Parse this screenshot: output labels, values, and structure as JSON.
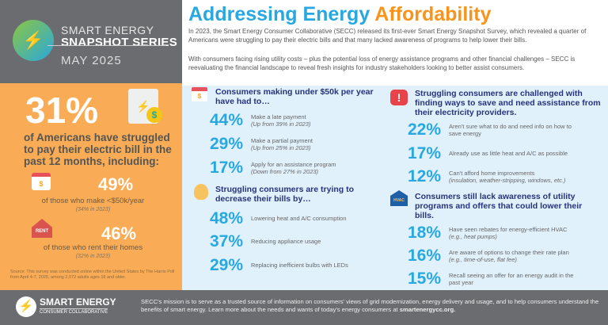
{
  "header": {
    "series_line1": "SMART ENERGY",
    "series_line2": "SNAPSHOT SERIES",
    "month": "MAY 2025",
    "title_blue": "Addressing Energy",
    "title_orange": "Affordability",
    "intro_p1": "In 2023, the Smart Energy Consumer Collaborative (SECC) released its first-ever Smart Energy Snapshot Survey, which revealed a quarter of Americans were struggling to pay their electric bills and that many lacked awareness of programs to help lower their bills.",
    "intro_p2": "With consumers facing rising utility costs – plus the potential loss of energy assistance programs and other financial challenges – SECC is reevaluating the financial landscape to reveal fresh insights for industry stakeholders looking to better assist consumers."
  },
  "left": {
    "headline_pct": "31%",
    "headline_text": "of Americans have struggled to pay their electric bill in the past 12 months, including:",
    "stats": [
      {
        "pct": "49%",
        "label": "of those who make <$50k/year",
        "note": "(34% in 2023)",
        "icon": "calendar-money-icon"
      },
      {
        "pct": "46%",
        "label": "of those who rent their homes",
        "note": "(32% in 2023)",
        "icon": "rent-house-icon",
        "icon_text": "RENT"
      }
    ],
    "source": "Source: This survey was conducted online within the United States by The Harris Poll from April 4-7, 2025, among 2,072 adults ages 18 and older."
  },
  "sections": [
    {
      "title": "Consumers making under $50k per year have had to…",
      "icon": "calendar-money-icon",
      "items": [
        {
          "pct": "44%",
          "text": "Make a late payment",
          "note": "(Up from 39% in 2023)"
        },
        {
          "pct": "29%",
          "text": "Make a partial payment",
          "note": "(Up from 25% in 2023)"
        },
        {
          "pct": "17%",
          "text": "Apply for an assistance program",
          "note": "(Down from 27% in 2023)"
        }
      ]
    },
    {
      "title": "Struggling consumers are trying to decrease their bills by…",
      "icon": "lightbulb-icon",
      "items": [
        {
          "pct": "48%",
          "text": "Lowering heat and A/C consumption"
        },
        {
          "pct": "37%",
          "text": "Reducing appliance usage"
        },
        {
          "pct": "29%",
          "text": "Replacing inefficient bulbs with LEDs"
        }
      ]
    },
    {
      "title": "Struggling consumers are challenged with finding ways to save and need assistance from their electricity providers.",
      "icon": "alert-icon",
      "items": [
        {
          "pct": "22%",
          "text": "Aren't sure what to do and need info on how to save energy"
        },
        {
          "pct": "17%",
          "text": "Already use as little heat and A/C as possible"
        },
        {
          "pct": "12%",
          "text": "Can't afford home improvements",
          "note": "(insulation, weather-stripping, windows, etc.)"
        }
      ]
    },
    {
      "title": "Consumers still lack awareness of utility programs and offers that could lower their bills.",
      "icon": "hvac-house-icon",
      "icon_text": "HVAC",
      "items": [
        {
          "pct": "18%",
          "text": "Have seen rebates for energy-efficient HVAC",
          "note": "(e.g., heat pumps)"
        },
        {
          "pct": "16%",
          "text": "Are aware of options to change their rate plan",
          "note": "(e.g., time-of-use, flat fee)"
        },
        {
          "pct": "15%",
          "text": "Recall seeing an offer for an energy audit in the past year"
        }
      ]
    }
  ],
  "footer": {
    "logo_name": "SMART ENERGY",
    "logo_sub": "CONSUMER COLLABORATIVE",
    "text": "SECC's mission is to serve as a trusted source of information on consumers' views of grid modernization, energy delivery and usage, and to help consumers understand the benefits of smart energy. Learn more about the needs and wants of today's energy consumers at ",
    "link": "smartenergycc.org."
  },
  "colors": {
    "blue": "#29a8e0",
    "orange": "#f7941d",
    "navy": "#27337d",
    "panel_orange": "#f9ac55",
    "gray": "#6b6c70",
    "light_blue": "#e1f1fb"
  }
}
